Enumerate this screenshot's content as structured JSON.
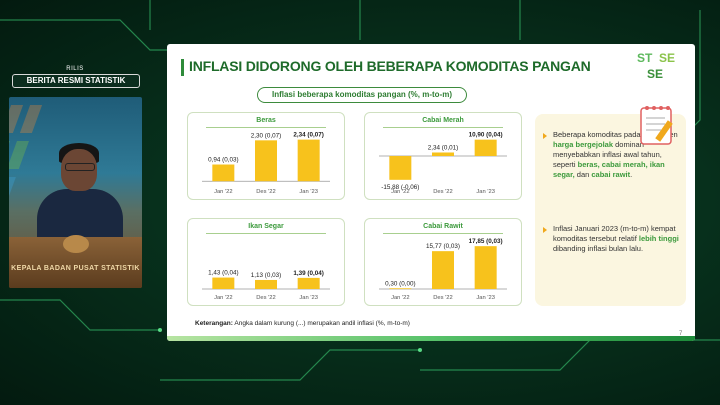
{
  "sidebar": {
    "rilis": "RILIS",
    "brs": "BERITA RESMI STATISTIK",
    "video_caption": "KEPALA BADAN PUSAT STATISTIK"
  },
  "slide": {
    "title": "INFLASI DIDORONG OLEH BEBERAPA KOMODITAS PANGAN",
    "subtitle": "Inflasi beberapa komoditas pangan (%, m-to-m)",
    "footnote_label": "Keterangan:",
    "footnote_text": "Angka dalam kurung (...) merupakan andil inflasi (%, m-to-m)",
    "page_number": "7"
  },
  "colors": {
    "bar": "#f7c21c",
    "accent_green": "#2e8b3a",
    "card_border": "#cfe0c0"
  },
  "chart_data": [
    {
      "type": "bar",
      "title": "Beras",
      "categories": [
        "Jan '22",
        "Des '22",
        "Jan '23"
      ],
      "values": [
        0.94,
        2.3,
        2.34
      ],
      "labels": [
        "0,94 (0,03)",
        "2,30 (0,07)",
        "2,34 (0,07)"
      ],
      "ylim": [
        -0.1,
        2.6
      ]
    },
    {
      "type": "bar",
      "title": "Cabai Merah",
      "categories": [
        "Jan '22",
        "Des '22",
        "Jan '23"
      ],
      "values": [
        -15.88,
        2.34,
        10.9
      ],
      "labels": [
        "-15,88 (-0,06)",
        "2,34 (0,01)",
        "10,90 (0,04)"
      ],
      "ylim": [
        -18,
        14
      ]
    },
    {
      "type": "bar",
      "title": "Ikan Segar",
      "categories": [
        "Jan '22",
        "Des '22",
        "Jan '23"
      ],
      "values": [
        1.43,
        1.13,
        1.39
      ],
      "labels": [
        "1,43 (0,04)",
        "1,13 (0,03)",
        "1,39 (0,04)"
      ],
      "ylim": [
        0,
        6
      ]
    },
    {
      "type": "bar",
      "title": "Cabai Rawit",
      "categories": [
        "Jan '22",
        "Des '22",
        "Jan '23"
      ],
      "values": [
        0.3,
        15.77,
        17.85
      ],
      "labels": [
        "0,30 (0,00)",
        "15,77 (0,03)",
        "17,85 (0,03)"
      ],
      "ylim": [
        0,
        20
      ]
    }
  ],
  "right_panel": {
    "item1": {
      "p1": "Beberapa komoditas pada komponen ",
      "b1": "harga bergejolak",
      "p2": " dominan menyebabkan inflasi awal tahun, seperti ",
      "b2": "beras, cabai merah, ikan segar,",
      "p3": " dan ",
      "b3": "cabai rawit",
      "p4": "."
    },
    "item2": {
      "p1": "Inflasi Januari 2023 (m-to-m) kempat komoditas tersebut relatif ",
      "b1": "lebih tinggi",
      "p2": " dibanding inflasi bulan lalu."
    }
  }
}
